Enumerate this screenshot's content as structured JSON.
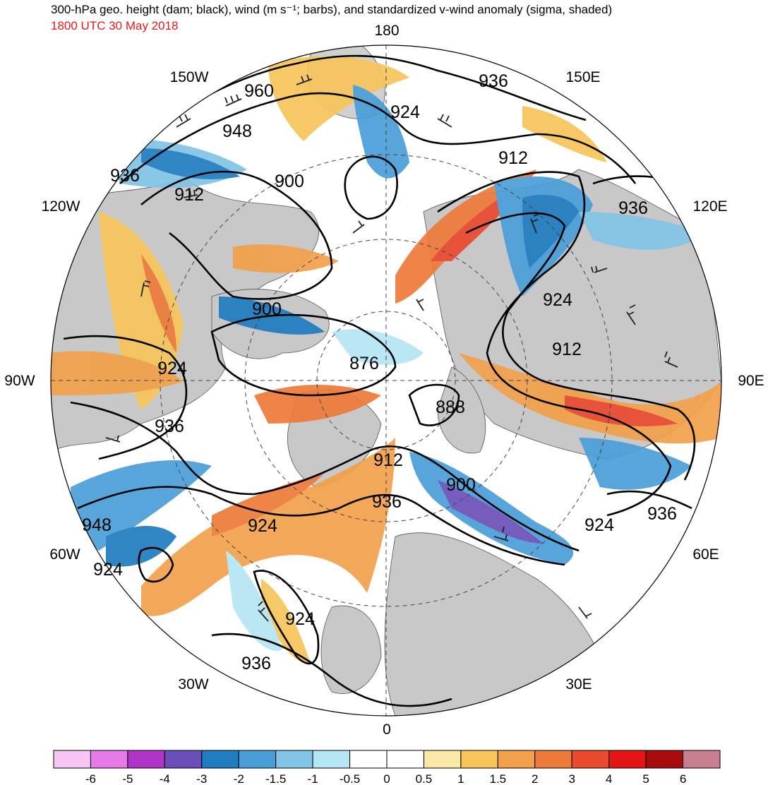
{
  "title": "300-hPa geo. height (dam; black), wind (m s⁻¹; barbs), and standardized v-wind anomaly (sigma, shaded)",
  "subtitle": "1800 UTC 30 May 2018",
  "colors": {
    "subtitle": "#e8191c",
    "land": "#c8c8c8",
    "ocean": "#ffffff",
    "contour": "#000000"
  },
  "longitude_labels": {
    "top": "180",
    "bottom": "0",
    "left": "90W",
    "right": "90E",
    "ul1": "150W",
    "ul2": "120W",
    "ur1": "150E",
    "ur2": "120E",
    "ll1": "60W",
    "ll2": "30W",
    "lr1": "60E",
    "lr2": "30E"
  },
  "contour_labels": [
    {
      "text": "960"
    },
    {
      "text": "948"
    },
    {
      "text": "936"
    },
    {
      "text": "912"
    },
    {
      "text": "900"
    },
    {
      "text": "924"
    },
    {
      "text": "936"
    },
    {
      "text": "912"
    },
    {
      "text": "936"
    },
    {
      "text": "900"
    },
    {
      "text": "924"
    },
    {
      "text": "912"
    },
    {
      "text": "876"
    },
    {
      "text": "888"
    },
    {
      "text": "924"
    },
    {
      "text": "936"
    },
    {
      "text": "912"
    },
    {
      "text": "900"
    },
    {
      "text": "936"
    },
    {
      "text": "924"
    },
    {
      "text": "924"
    },
    {
      "text": "936"
    },
    {
      "text": "948"
    },
    {
      "text": "924"
    },
    {
      "text": "924"
    },
    {
      "text": "936"
    }
  ],
  "colorbar": {
    "colors": [
      "#f7c6f7",
      "#e67ae6",
      "#b034c8",
      "#6a4fb8",
      "#1f7cc0",
      "#4a9ed8",
      "#82c4e6",
      "#b4e6f4",
      "#ffffff",
      "#ffffff",
      "#fbe8a6",
      "#f7c55a",
      "#f2a04a",
      "#ee7a3a",
      "#ea4a2e",
      "#e41414",
      "#a80c0c",
      "#c88090"
    ],
    "ticks": [
      "-6",
      "-5",
      "-4",
      "-3",
      "-2",
      "-1.5",
      "-1",
      "-0.5",
      "0",
      "0.5",
      "1",
      "1.5",
      "2",
      "3",
      "4",
      "5",
      "6"
    ]
  }
}
